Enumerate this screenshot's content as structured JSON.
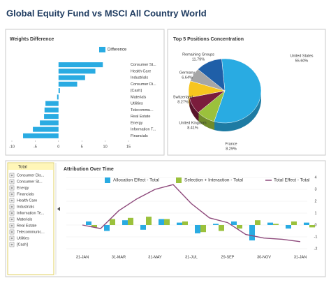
{
  "title": "Global Equity Fund vs MSCI All Country World",
  "tree": {
    "header": "Total",
    "items": [
      "Consumer Dis...",
      "Consumer St...",
      "Energy",
      "Financials",
      "Health Care",
      "Industrials",
      "Information Te...",
      "Materials",
      "Real Estate",
      "Telecommunic...",
      "Utilities",
      "[Cash]"
    ]
  },
  "chart_data": [
    {
      "type": "bar",
      "orientation": "horizontal",
      "title": "Weights Difference",
      "categories": [
        "Consumer St...",
        "Health Care",
        "Industrials",
        "Consumer Di...",
        "[Cash]",
        "Materials",
        "Utilities",
        "Telecommu...",
        "Real Estate",
        "Energy",
        "Information T...",
        "Financials"
      ],
      "series": [
        {
          "name": "Difference",
          "color": "#29abe2",
          "values": [
            9.5,
            7.9,
            5.7,
            4.0,
            0.3,
            -0.3,
            -2.8,
            -3.0,
            -3.1,
            -4.0,
            -5.5,
            -7.6
          ]
        }
      ],
      "xlim": [
        -10,
        15
      ],
      "xticks": [
        -10,
        -5,
        0,
        5,
        10,
        15
      ]
    },
    {
      "type": "pie",
      "title": "Top 5 Positions Concentration",
      "categories": [
        "United States",
        "France",
        "United Kingdom",
        "Switzerland",
        "Germany",
        "Remaining Groups"
      ],
      "values": [
        55.6,
        8.29,
        8.41,
        8.27,
        6.64,
        11.79
      ],
      "value_labels": [
        "55.60%",
        "8.29%",
        "8.41%",
        "8.27%",
        "6.64%",
        "11.79%"
      ],
      "colors": [
        "#29abe2",
        "#9bc13c",
        "#7b1c3c",
        "#f7c51e",
        "#a6a6a6",
        "#1f5fa8"
      ]
    },
    {
      "type": "combo",
      "title": "Attribution Over Time",
      "categories": [
        "31-JAN",
        null,
        "31-MAR",
        null,
        "31-MAY",
        null,
        "31-JUL",
        null,
        "29-SEP",
        null,
        "30-NOV",
        null,
        "31-JAN"
      ],
      "series": [
        {
          "name": "Allocation Effect - Total",
          "type": "bar",
          "color": "#29abe2",
          "values": [
            0.3,
            -0.5,
            0.4,
            -0.4,
            0.5,
            0.2,
            -0.7,
            0.1,
            0.3,
            -1.3,
            0.2,
            -0.3,
            0.2
          ]
        },
        {
          "name": "Selection + Interaction - Total",
          "type": "bar",
          "color": "#9bc13c",
          "values": [
            -0.2,
            0.5,
            0.6,
            0.7,
            0.5,
            0.3,
            -0.6,
            -0.5,
            -0.3,
            0.4,
            0.1,
            0.3,
            -0.2
          ]
        },
        {
          "name": "Total Effect - Total",
          "type": "line",
          "color": "#8e4a7c",
          "values": [
            0,
            -0.3,
            1.2,
            2.2,
            3.0,
            3.4,
            1.8,
            0.6,
            0.2,
            -0.8,
            -1.1,
            -1.2,
            -1.4
          ]
        }
      ],
      "ylim": [
        -2,
        4
      ],
      "yticks": [
        -2,
        -1,
        0,
        1,
        2,
        3,
        4
      ],
      "grid": true,
      "legend": "top"
    }
  ]
}
